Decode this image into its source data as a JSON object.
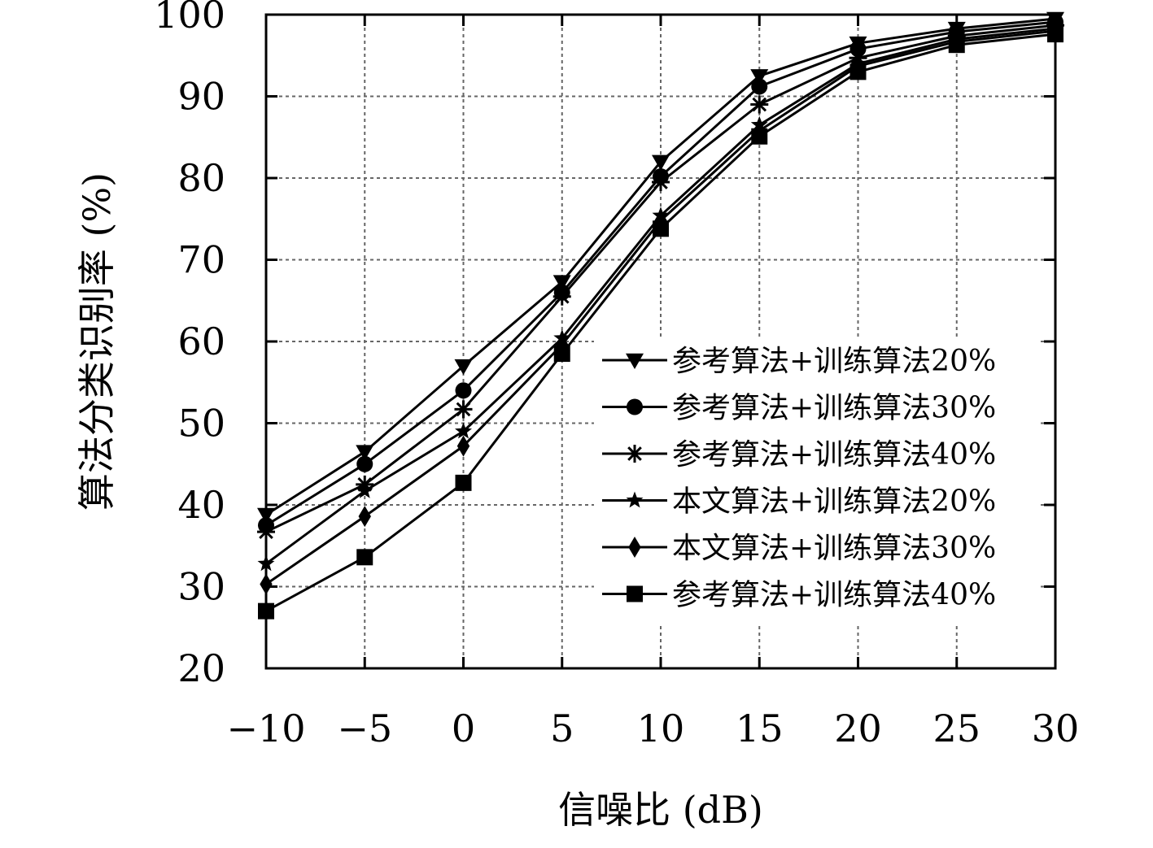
{
  "chart_data": {
    "type": "line",
    "xlabel": "信噪比 (dB)",
    "ylabel": "算法分类识别率 (%)",
    "x": [
      -10,
      -5,
      0,
      5,
      10,
      15,
      20,
      25,
      30
    ],
    "x_tick_labels": [
      "−10",
      "−5",
      "0",
      "5",
      "10",
      "15",
      "20",
      "25",
      "30"
    ],
    "y_ticks": [
      20,
      30,
      40,
      50,
      60,
      70,
      80,
      90,
      100
    ],
    "y_tick_labels": [
      "20",
      "30",
      "40",
      "50",
      "60",
      "70",
      "80",
      "90",
      "100"
    ],
    "xlim": [
      -10,
      30
    ],
    "ylim": [
      20,
      100
    ],
    "grid": true,
    "legend_position": "right",
    "line_color": "#000000",
    "series": [
      {
        "name": "参考算法+训练算法20%",
        "marker": "triangle-down",
        "values": [
          38.8,
          46.5,
          57.0,
          67.3,
          82.0,
          92.5,
          96.5,
          98.3,
          99.5
        ]
      },
      {
        "name": "参考算法+训练算法30%",
        "marker": "circle",
        "values": [
          37.5,
          45.0,
          54.0,
          66.0,
          80.2,
          91.2,
          95.8,
          97.9,
          99.1
        ]
      },
      {
        "name": "参考算法+训练算法40%",
        "marker": "asterisk",
        "values": [
          36.7,
          42.5,
          51.7,
          65.5,
          79.5,
          89.0,
          94.7,
          97.4,
          98.7
        ]
      },
      {
        "name": "本文算法+训练算法20%",
        "marker": "star",
        "values": [
          32.8,
          41.7,
          49.0,
          60.4,
          75.4,
          86.5,
          94.0,
          97.0,
          98.3
        ]
      },
      {
        "name": "本文算法+训练算法30%",
        "marker": "diamond",
        "values": [
          30.3,
          38.6,
          47.2,
          59.6,
          74.8,
          85.8,
          93.7,
          96.7,
          98.0
        ]
      },
      {
        "name": "参考算法+训练算法40%",
        "marker": "square",
        "values": [
          27.0,
          33.6,
          42.7,
          58.5,
          73.8,
          85.1,
          93.0,
          96.3,
          97.6
        ]
      }
    ]
  }
}
